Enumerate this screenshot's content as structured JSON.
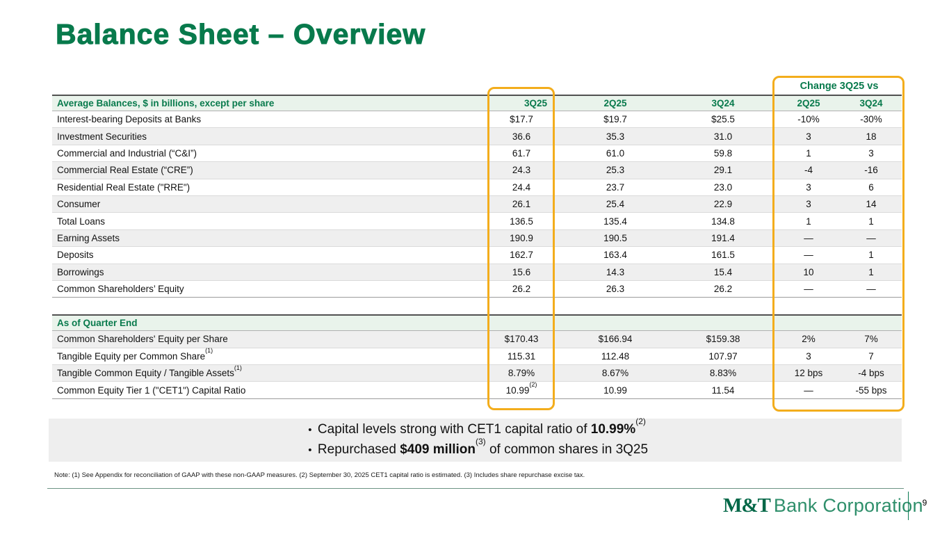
{
  "slide": {
    "title": "Balance Sheet – Overview",
    "page_number": "9",
    "logo": {
      "mt": "M&T",
      "rest": "Bank Corporation"
    },
    "note": "Note: (1) See Appendix for reconciliation of GAAP with these non-GAAP measures. (2) September 30, 2025 CET1 capital ratio is estimated. (3) Includes share repurchase excise tax."
  },
  "colors": {
    "brand_green": "#087a4c",
    "header_row_bg": "#e9f3eb",
    "alt_row_bg": "#efefef",
    "highlight_gold": "#f3ad1c"
  },
  "table": {
    "change_header": "Change 3Q25 vs",
    "columns": [
      "3Q25",
      "2Q25",
      "3Q24"
    ],
    "change_columns": [
      "2Q25",
      "3Q24"
    ],
    "section1": {
      "header": "Average Balances, $ in billions, except per share",
      "rows": [
        {
          "label": "Interest-bearing Deposits at Banks",
          "values": [
            "$17.7",
            "$19.7",
            "$25.5"
          ],
          "changes": [
            "-10%",
            "-30%"
          ]
        },
        {
          "label": "Investment Securities",
          "values": [
            "36.6",
            "35.3",
            "31.0"
          ],
          "changes": [
            "3",
            "18"
          ]
        },
        {
          "label": "Commercial and Industrial (“C&I”)",
          "values": [
            "61.7",
            "61.0",
            "59.8"
          ],
          "changes": [
            "1",
            "3"
          ]
        },
        {
          "label": "Commercial Real Estate (“CRE”)",
          "values": [
            "24.3",
            "25.3",
            "29.1"
          ],
          "changes": [
            "-4",
            "-16"
          ]
        },
        {
          "label": "Residential Real Estate (\"RRE\")",
          "values": [
            "24.4",
            "23.7",
            "23.0"
          ],
          "changes": [
            "3",
            "6"
          ]
        },
        {
          "label": "Consumer",
          "values": [
            "26.1",
            "25.4",
            "22.9"
          ],
          "changes": [
            "3",
            "14"
          ]
        },
        {
          "label": "Total Loans",
          "values": [
            "136.5",
            "135.4",
            "134.8"
          ],
          "changes": [
            "1",
            "1"
          ]
        },
        {
          "label": "Earning Assets",
          "values": [
            "190.9",
            "190.5",
            "191.4"
          ],
          "changes": [
            "—",
            "—"
          ]
        },
        {
          "label": "Deposits",
          "values": [
            "162.7",
            "163.4",
            "161.5"
          ],
          "changes": [
            "—",
            "1"
          ]
        },
        {
          "label": "Borrowings",
          "values": [
            "15.6",
            "14.3",
            "15.4"
          ],
          "changes": [
            "10",
            "1"
          ]
        },
        {
          "label": "Common Shareholders’ Equity",
          "values": [
            "26.2",
            "26.3",
            "26.2"
          ],
          "changes": [
            "—",
            "—"
          ]
        }
      ]
    },
    "section2": {
      "header": "As of Quarter End",
      "rows": [
        {
          "label": "Common Shareholders' Equity per Share",
          "values": [
            "$170.43",
            "$166.94",
            "$159.38"
          ],
          "changes": [
            "2%",
            "7%"
          ]
        },
        {
          "label": "Tangible Equity per Common Share",
          "label_sup": "(1)",
          "values": [
            "115.31",
            "112.48",
            "107.97"
          ],
          "changes": [
            "3",
            "7"
          ]
        },
        {
          "label": "Tangible Common Equity / Tangible Assets",
          "label_sup": "(1)",
          "values": [
            "8.79%",
            "8.67%",
            "8.83%"
          ],
          "changes": [
            "12 bps",
            "-4 bps"
          ]
        },
        {
          "label": "Common Equity Tier 1 (\"CET1\") Capital Ratio",
          "values": [
            "10.99",
            "10.99",
            "11.54"
          ],
          "value0_sup": "(2)",
          "changes": [
            "—",
            "-55 bps"
          ]
        }
      ]
    }
  },
  "bullets": [
    {
      "segments": [
        {
          "text": "Capital levels strong with CET1 capital ratio of "
        },
        {
          "text": "10.99%",
          "bold": true
        },
        {
          "text": "(2)",
          "sup": true
        }
      ]
    },
    {
      "segments": [
        {
          "text": "Repurchased "
        },
        {
          "text": "$409 million",
          "bold": true
        },
        {
          "text": "(3)",
          "sup": true
        },
        {
          "text": " of common shares in 3Q25"
        }
      ]
    }
  ]
}
